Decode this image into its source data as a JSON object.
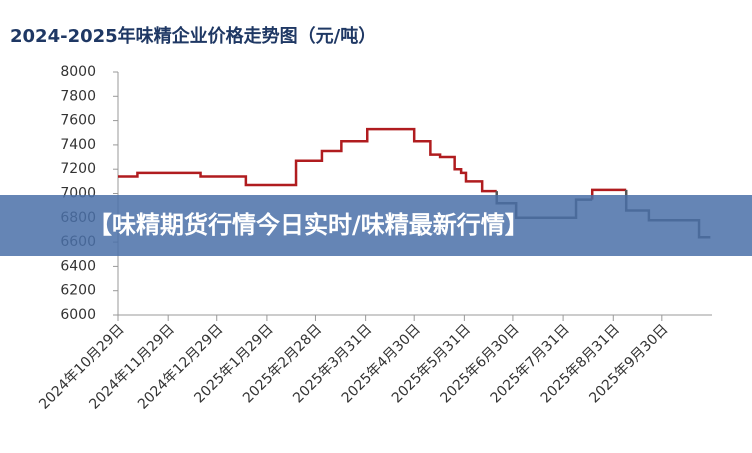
{
  "chart_data": {
    "type": "line",
    "title": "2024-2025年味精企业价格走势图（元/吨）",
    "series": [
      {
        "color": "#b01c1f",
        "x": [
          "2024-10-29",
          "2024-11-10",
          "2024-11-10",
          "2024-12-19",
          "2024-12-19",
          "2025-01-16",
          "2025-01-16",
          "2025-02-16",
          "2025-02-16",
          "2025-03-04",
          "2025-03-04",
          "2025-03-16",
          "2025-03-16",
          "2025-04-01",
          "2025-04-01",
          "2025-04-30",
          "2025-04-30",
          "2025-05-10",
          "2025-05-10",
          "2025-05-16",
          "2025-05-16",
          "2025-05-25",
          "2025-05-25",
          "2025-05-29",
          "2025-05-29",
          "2025-06-01",
          "2025-06-01",
          "2025-06-11",
          "2025-06-11",
          "2025-06-20"
        ],
        "values": [
          7140,
          7140,
          7170,
          7170,
          7140,
          7140,
          7070,
          7070,
          7270,
          7270,
          7350,
          7350,
          7430,
          7430,
          7530,
          7530,
          7430,
          7430,
          7320,
          7320,
          7300,
          7300,
          7200,
          7200,
          7170,
          7170,
          7100,
          7100,
          7020,
          7020
        ]
      },
      {
        "color": "#555555",
        "x": [
          "2025-06-20",
          "2025-06-20",
          "2025-07-02",
          "2025-07-02",
          "2025-08-08",
          "2025-08-08",
          "2025-08-18"
        ],
        "values": [
          7020,
          6920,
          6920,
          6800,
          6800,
          6950,
          6950
        ]
      },
      {
        "color": "#b01c1f",
        "x": [
          "2025-08-18",
          "2025-08-18",
          "2025-09-08"
        ],
        "values": [
          6950,
          7030,
          7030
        ]
      },
      {
        "color": "#555555",
        "x": [
          "2025-09-08",
          "2025-09-08",
          "2025-09-22",
          "2025-09-22",
          "2025-10-23",
          "2025-10-23",
          "2025-10-30"
        ],
        "values": [
          7030,
          6860,
          6860,
          6780,
          6780,
          6640,
          6640
        ]
      }
    ],
    "xlim": [
      "2024-10-29",
      "2025-10-31"
    ],
    "xticks": [
      {
        "value": "2024-10-29",
        "label": "2024年10月29日"
      },
      {
        "value": "2024-11-29",
        "label": "2024年11月29日"
      },
      {
        "value": "2024-12-29",
        "label": "2024年12月29日"
      },
      {
        "value": "2025-01-29",
        "label": "2025年1月29日"
      },
      {
        "value": "2025-02-28",
        "label": "2025年2月28日"
      },
      {
        "value": "2025-03-31",
        "label": "2025年3月31日"
      },
      {
        "value": "2025-04-30",
        "label": "2025年4月30日"
      },
      {
        "value": "2025-05-31",
        "label": "2025年5月31日"
      },
      {
        "value": "2025-06-30",
        "label": "2025年6月30日"
      },
      {
        "value": "2025-07-31",
        "label": "2025年7月31日"
      },
      {
        "value": "2025-08-31",
        "label": "2025年8月31日"
      },
      {
        "value": "2025-09-30",
        "label": "2025年9月30日"
      }
    ],
    "ylim": [
      6000,
      8000
    ],
    "yticks": [
      6000,
      6200,
      6400,
      6600,
      6800,
      7000,
      7200,
      7400,
      7600,
      7800,
      8000
    ]
  },
  "banner": {
    "text": "【味精期货行情今日实时/味精最新行情】"
  }
}
